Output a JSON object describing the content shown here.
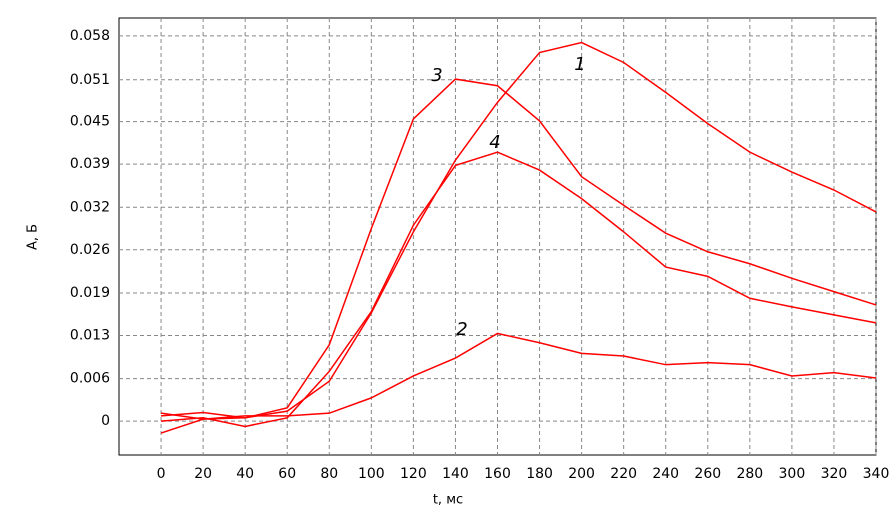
{
  "chart_data": {
    "type": "line",
    "x_label": "t, мс",
    "y_label": "А, Б",
    "x": [
      0,
      20,
      40,
      60,
      80,
      100,
      120,
      140,
      160,
      180,
      200,
      220,
      240,
      260,
      280,
      300,
      320,
      340
    ],
    "series": [
      {
        "name": "1",
        "color": "#ff0000",
        "values": [
          -0.0018,
          0.0003,
          0.0005,
          0.0015,
          0.006,
          0.0163,
          0.0285,
          0.0393,
          0.048,
          0.0555,
          0.057,
          0.054,
          0.0495,
          0.0448,
          0.0405,
          0.0375,
          0.0348,
          0.0315
        ]
      },
      {
        "name": "2",
        "color": "#ff0000",
        "values": [
          0.0012,
          0.0003,
          0.0008,
          0.0008,
          0.0012,
          0.0035,
          0.0068,
          0.0095,
          0.0132,
          0.0118,
          0.0102,
          0.0098,
          0.0085,
          0.0088,
          0.0085,
          0.0068,
          0.0073,
          0.0065
        ]
      },
      {
        "name": "3",
        "color": "#ff0000",
        "values": [
          0.0008,
          0.0013,
          0.0005,
          0.002,
          0.0115,
          0.029,
          0.0455,
          0.0515,
          0.0505,
          0.0452,
          0.0368,
          0.0325,
          0.0283,
          0.0255,
          0.0237,
          0.0215,
          0.0195,
          0.0175
        ]
      },
      {
        "name": "4",
        "color": "#ff0000",
        "values": [
          0,
          0.0005,
          -0.0008,
          0.0005,
          0.0075,
          0.0165,
          0.0295,
          0.0385,
          0.0405,
          0.0378,
          0.0335,
          0.0285,
          0.0232,
          0.0218,
          0.0185,
          0.0172,
          0.016,
          0.0148
        ]
      }
    ],
    "xlim": [
      -20,
      340
    ],
    "xticks": [
      0,
      20,
      40,
      60,
      80,
      100,
      120,
      140,
      160,
      180,
      200,
      220,
      240,
      260,
      280,
      300,
      320,
      340
    ],
    "ylim": [
      -0.0051,
      0.0607
    ],
    "yticks": [
      0,
      {
        "value": 0.0064,
        "label": "0.006"
      },
      {
        "value": 0.0129,
        "label": "0.013"
      },
      {
        "value": 0.0193,
        "label": "0.019"
      },
      {
        "value": 0.0258,
        "label": "0.026"
      },
      {
        "value": 0.0322,
        "label": "0.032"
      },
      {
        "value": 0.0387,
        "label": "0.039"
      },
      {
        "value": 0.0451,
        "label": "0.045"
      },
      {
        "value": 0.0514,
        "label": "0.051"
      },
      0.058
    ],
    "grid": true
  }
}
